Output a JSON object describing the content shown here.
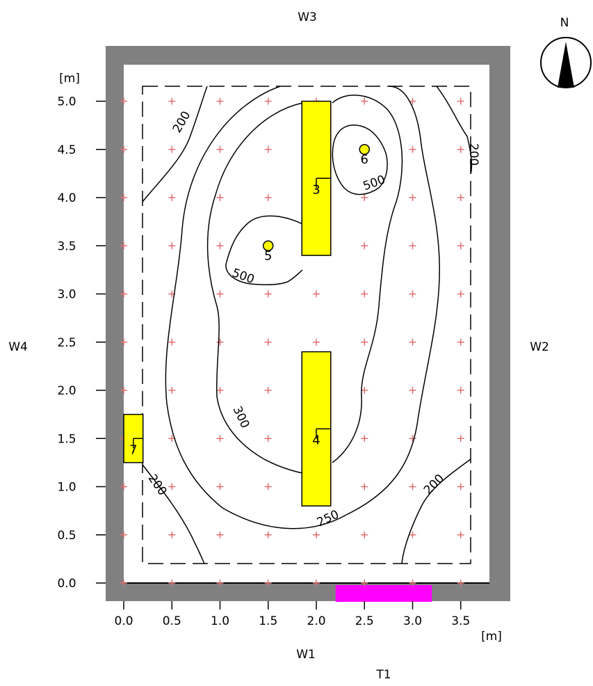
{
  "walls": {
    "top": "W3",
    "right": "W2",
    "bottom": "W1",
    "left": "W4"
  },
  "door_label": "T1",
  "compass_label": "N",
  "axes": {
    "x_unit": "[m]",
    "y_unit": "[m]",
    "x_ticks": [
      "0.0",
      "0.5",
      "1.0",
      "1.5",
      "2.0",
      "2.5",
      "3.0",
      "3.5"
    ],
    "y_ticks": [
      "0.0",
      "0.5",
      "1.0",
      "1.5",
      "2.0",
      "2.5",
      "3.0",
      "3.5",
      "4.0",
      "4.5",
      "5.0"
    ]
  },
  "room": {
    "width_m": 3.8,
    "depth_m": 5.4
  },
  "luminaires": [
    {
      "id": "3",
      "x_from": 1.85,
      "x_to": 2.15,
      "y_from": 3.4,
      "y_to": 5.0
    },
    {
      "id": "4",
      "x_from": 1.85,
      "x_to": 2.15,
      "y_from": 0.8,
      "y_to": 2.4
    },
    {
      "id": "7",
      "x_from": 0.0,
      "x_to": 0.2,
      "y_from": 1.25,
      "y_to": 1.75
    }
  ],
  "spots": [
    {
      "id": "5",
      "x": 1.5,
      "y": 3.5
    },
    {
      "id": "6",
      "x": 2.5,
      "y": 4.5
    }
  ],
  "door": {
    "x_from": 2.2,
    "x_to": 3.2
  },
  "contour_labels": [
    "200",
    "200",
    "200",
    "200",
    "250",
    "300",
    "500",
    "500"
  ],
  "colors": {
    "wall": "#808080",
    "luminaire": "#ffff00",
    "door": "#ff00ff",
    "grid_marker": "#e07070"
  }
}
